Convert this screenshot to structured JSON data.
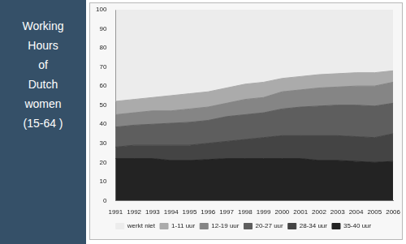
{
  "chart_data": {
    "type": "area",
    "title": "Working\nHours\nof\nDutch\nwomen\n(15-64 )",
    "stacked": true,
    "grid": false,
    "legend": "bottom",
    "categories": [
      "1991",
      "1992",
      "1993",
      "1994",
      "1995",
      "1996",
      "1997",
      "1998",
      "1999",
      "2000",
      "2001",
      "2002",
      "2003",
      "2004",
      "2005",
      "2006"
    ],
    "series": [
      {
        "name": "werkt niet",
        "color": "#ececec",
        "values": [
          48,
          47,
          46,
          45,
          44,
          43,
          41,
          39,
          38,
          36,
          35,
          34,
          33.5,
          33,
          33,
          32
        ]
      },
      {
        "name": "1-11 uur",
        "color": "#ababab",
        "values": [
          7,
          7,
          7,
          8,
          8,
          8,
          8,
          8,
          8,
          7,
          7,
          7,
          7,
          7,
          7,
          6
        ]
      },
      {
        "name": "12-19 uur",
        "color": "#858585",
        "values": [
          6.5,
          6.5,
          7,
          6.5,
          7,
          7,
          7,
          8,
          8,
          9,
          9,
          9.5,
          9.5,
          10,
          10.5,
          11
        ]
      },
      {
        "name": "20-27 uur",
        "color": "#5e5e5e",
        "values": [
          10.5,
          10.5,
          11,
          11.5,
          12,
          12,
          13,
          13,
          13,
          14,
          15,
          15.5,
          16,
          16.5,
          16.5,
          16
        ]
      },
      {
        "name": "28-34 uur",
        "color": "#444444",
        "values": [
          6,
          7,
          7,
          8,
          8,
          8.5,
          9,
          10,
          11,
          12,
          12,
          13,
          13,
          13,
          13,
          14.5
        ]
      },
      {
        "name": "35-40 uur",
        "color": "#232323",
        "values": [
          22,
          22,
          22,
          21,
          21,
          21.5,
          22,
          22,
          22,
          22,
          22,
          21,
          21,
          20.5,
          20,
          20.5
        ]
      }
    ],
    "ylim": [
      0,
      100
    ],
    "yticks": [
      0,
      10,
      20,
      30,
      40,
      50,
      60,
      70,
      80,
      90,
      100
    ]
  }
}
